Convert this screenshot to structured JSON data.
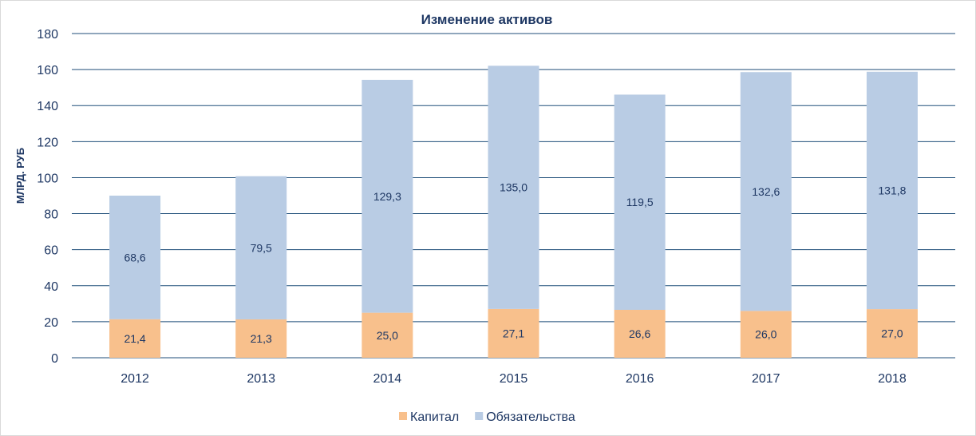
{
  "chart_data": {
    "type": "bar",
    "stacked": true,
    "title": "Изменение активов",
    "ylabel": "МЛРД. РУБ",
    "xlabel": "",
    "ylim": [
      0,
      180
    ],
    "yticks": [
      0,
      20,
      40,
      60,
      80,
      100,
      120,
      140,
      160,
      180
    ],
    "grid": true,
    "legend_position": "bottom",
    "categories": [
      "2012",
      "2013",
      "2014",
      "2015",
      "2016",
      "2017",
      "2018"
    ],
    "series": [
      {
        "name": "Капитал",
        "color": "#f8c08c",
        "values": [
          21.4,
          21.3,
          25.0,
          27.1,
          26.6,
          26.0,
          27.0
        ],
        "labels": [
          "21,4",
          "21,3",
          "25,0",
          "27,1",
          "26,6",
          "26,0",
          "27,0"
        ]
      },
      {
        "name": "Обязательства",
        "color": "#b9cce4",
        "values": [
          68.6,
          79.5,
          129.3,
          135.0,
          119.5,
          132.6,
          131.8
        ],
        "labels": [
          "68,6",
          "79,5",
          "129,3",
          "135,0",
          "119,5",
          "132,6",
          "131,8"
        ]
      }
    ]
  }
}
